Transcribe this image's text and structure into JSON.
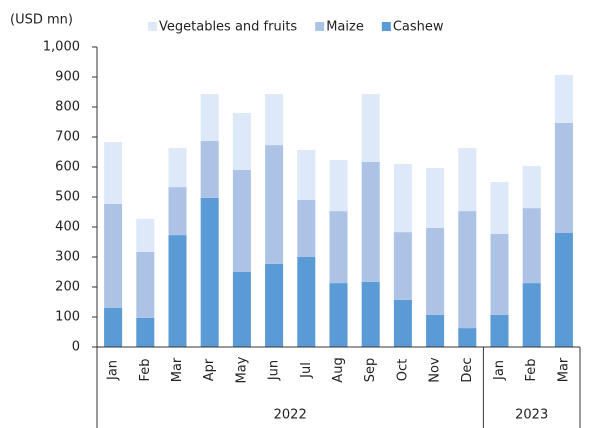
{
  "chart_data": {
    "type": "stacked_bar",
    "unit_label": "(USD mn)",
    "categories": [
      "Jan",
      "Feb",
      "Mar",
      "Apr",
      "May",
      "Jun",
      "Jul",
      "Aug",
      "Sep",
      "Oct",
      "Nov",
      "Dec",
      "Jan",
      "Feb",
      "Mar"
    ],
    "groups": [
      {
        "label": "2022",
        "span": 12
      },
      {
        "label": "2023",
        "span": 3
      }
    ],
    "series": [
      {
        "name": "Cashew",
        "color": "#5b9bd5",
        "values": [
          130,
          97,
          373,
          497,
          250,
          277,
          300,
          213,
          217,
          157,
          107,
          63,
          107,
          213,
          380
        ]
      },
      {
        "name": "Maize",
        "color": "#adc3e6",
        "values": [
          347,
          220,
          160,
          190,
          340,
          396,
          190,
          240,
          400,
          226,
          290,
          390,
          270,
          250,
          367
        ]
      },
      {
        "name": "Vegetables and fruits",
        "color": "#dde8f8",
        "values": [
          206,
          110,
          130,
          156,
          190,
          170,
          167,
          170,
          226,
          227,
          200,
          210,
          173,
          140,
          160
        ]
      }
    ],
    "ylim": [
      0,
      1000
    ],
    "yticks": [
      0,
      100,
      200,
      300,
      400,
      500,
      600,
      700,
      800,
      900,
      {
        "value": 1000,
        "label": "1,000"
      }
    ]
  }
}
